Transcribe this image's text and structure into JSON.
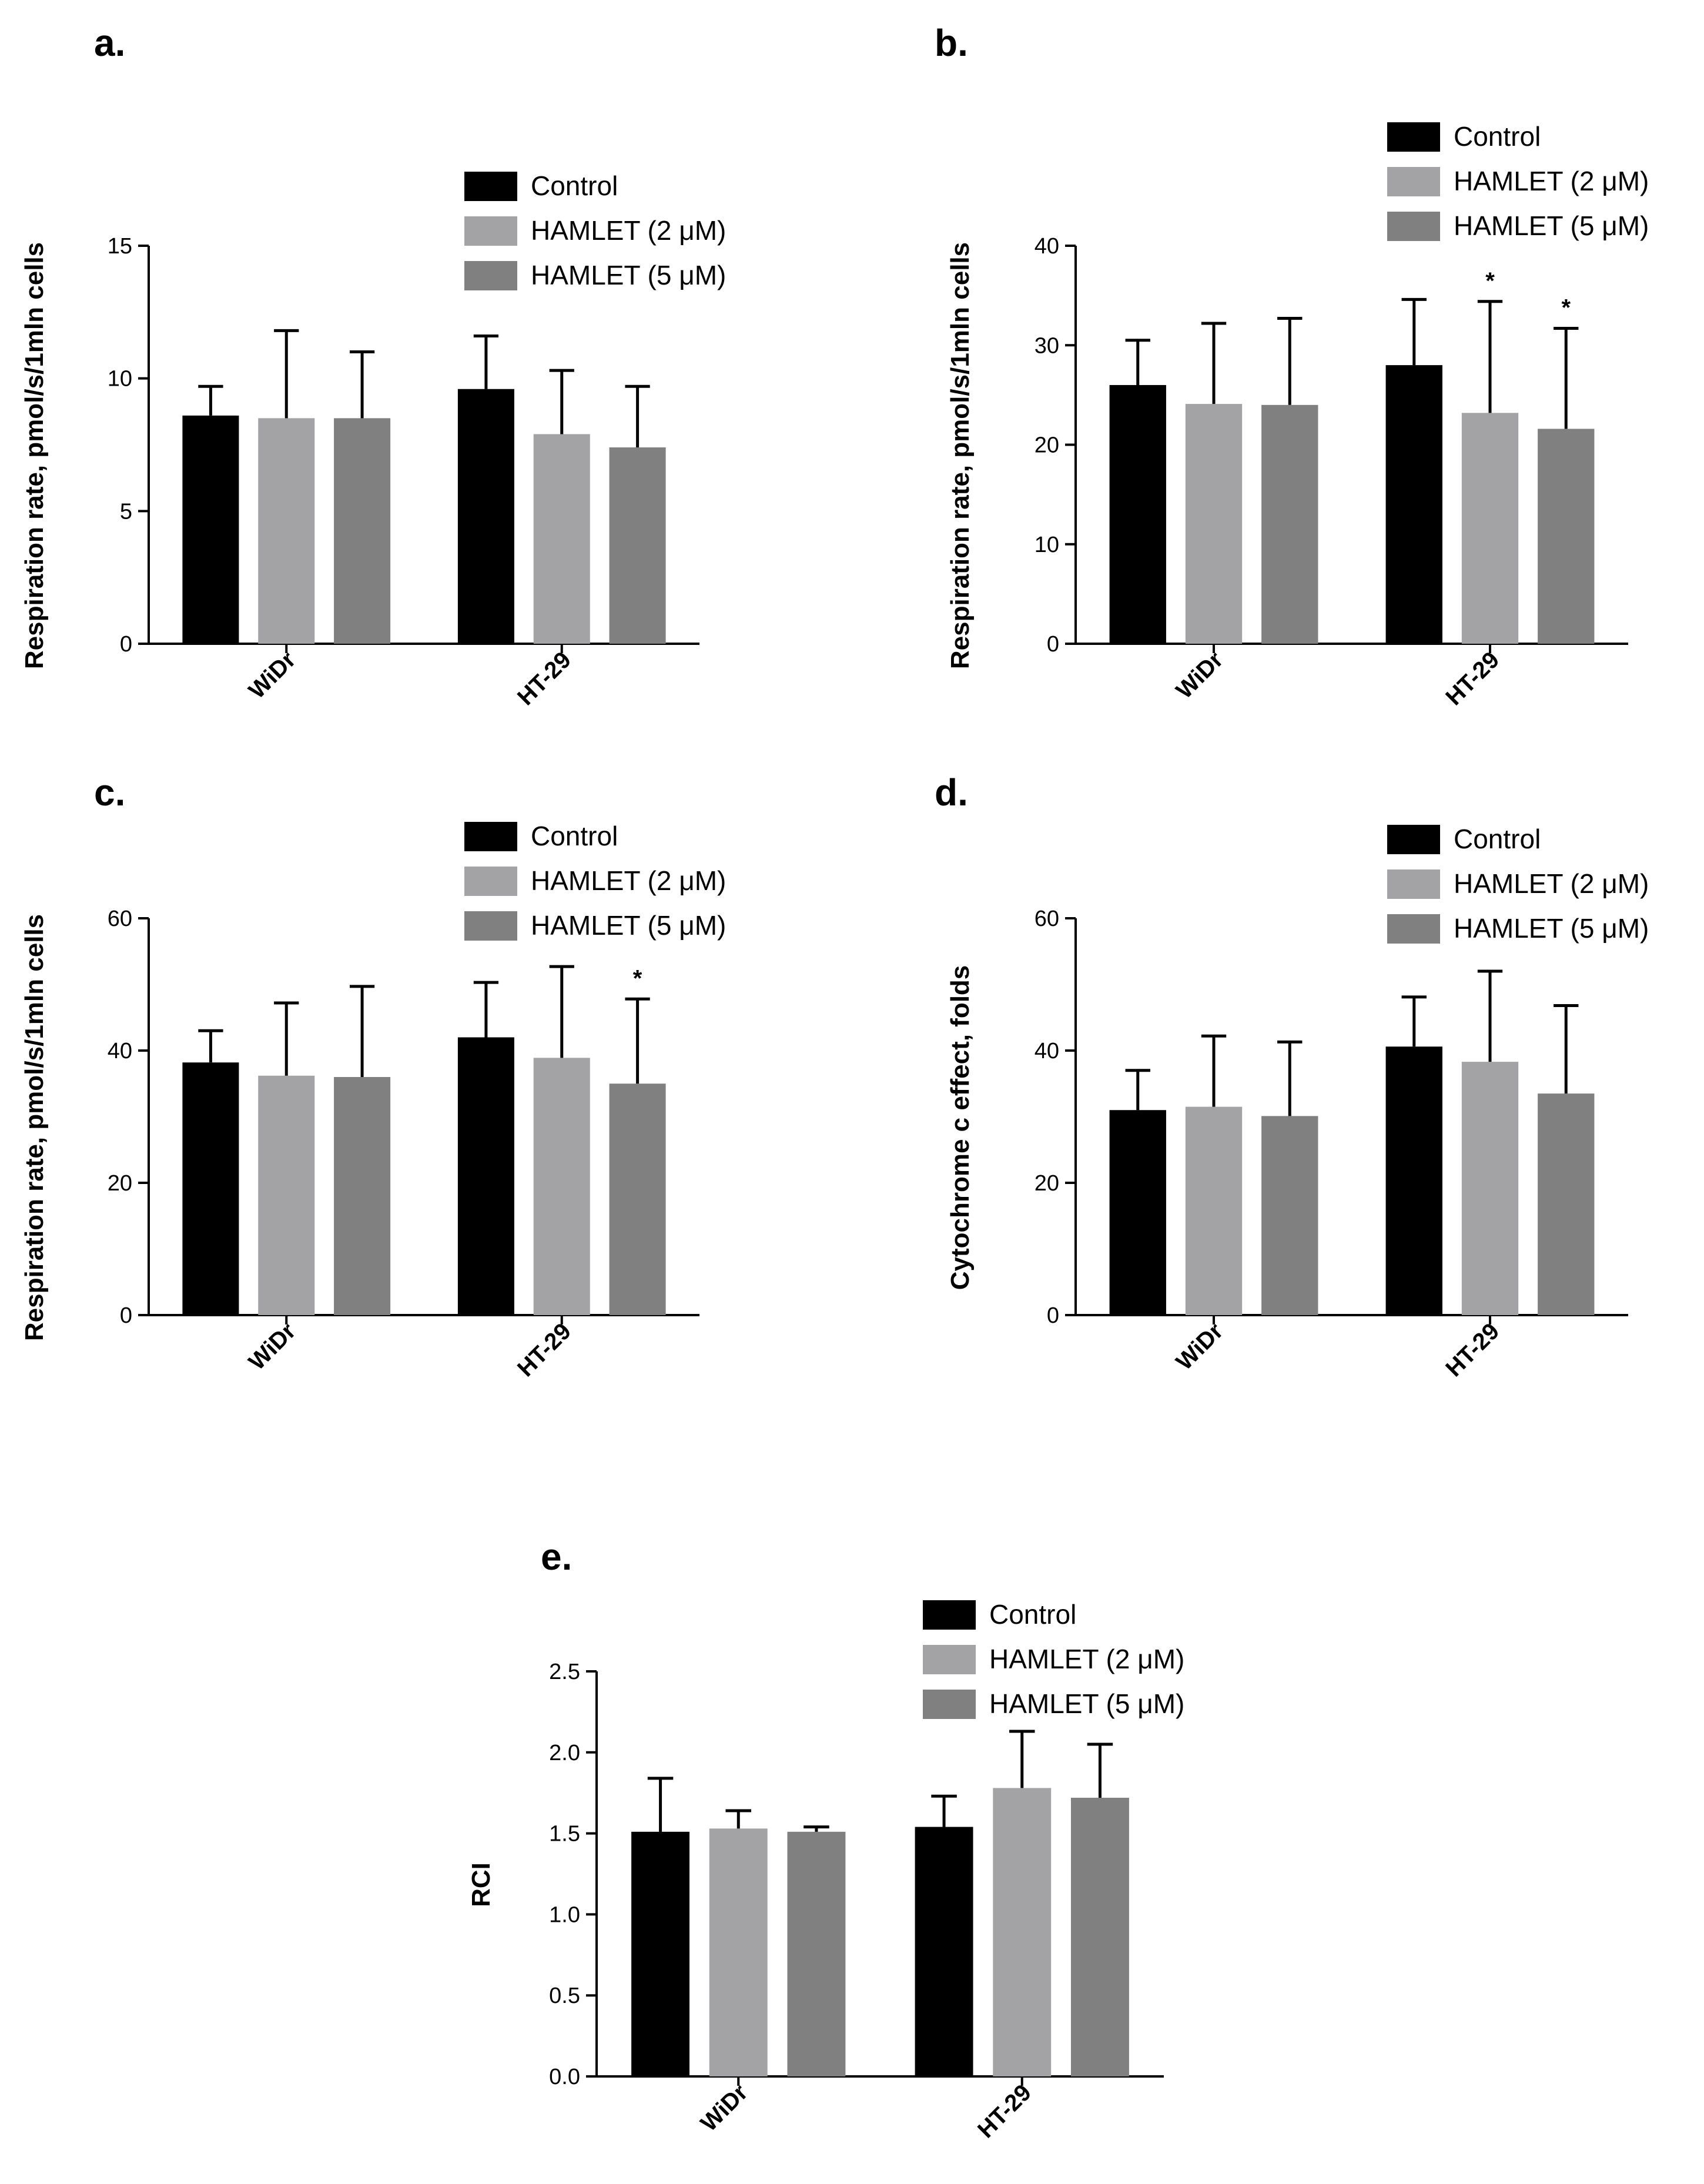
{
  "colors": {
    "control": "#000000",
    "hamlet2": "#a3a3a6",
    "hamlet5": "#808080"
  },
  "legend": [
    "Control",
    "HAMLET (2 μM)",
    "HAMLET (5 μM)"
  ],
  "chart_data": [
    {
      "panel": "a.",
      "type": "bar",
      "ylabel": "Respiration rate, pmol/s/1mln cells",
      "categories": [
        "WiDr",
        "HT-29"
      ],
      "ylim": [
        0,
        15
      ],
      "yticks": [
        "0",
        "5",
        "10",
        "15"
      ],
      "series": [
        {
          "name": "Control",
          "values": [
            8.6,
            9.6
          ],
          "errors": [
            1.1,
            2.0
          ],
          "sig": [
            "",
            ""
          ]
        },
        {
          "name": "HAMLET (2 μM)",
          "values": [
            8.5,
            7.9
          ],
          "errors": [
            3.3,
            2.4
          ],
          "sig": [
            "",
            ""
          ]
        },
        {
          "name": "HAMLET (5 μM)",
          "values": [
            8.5,
            7.4
          ],
          "errors": [
            2.5,
            2.3
          ],
          "sig": [
            "",
            ""
          ]
        }
      ]
    },
    {
      "panel": "b.",
      "type": "bar",
      "ylabel": "Respiration rate, pmol/s/1mln cells",
      "categories": [
        "WiDr",
        "HT-29"
      ],
      "ylim": [
        0,
        40
      ],
      "yticks": [
        "0",
        "10",
        "20",
        "30",
        "40"
      ],
      "series": [
        {
          "name": "Control",
          "values": [
            26,
            28
          ],
          "errors": [
            4.5,
            6.6
          ],
          "sig": [
            "",
            ""
          ]
        },
        {
          "name": "HAMLET (2 μM)",
          "values": [
            24.1,
            23.2
          ],
          "errors": [
            8.1,
            11.2
          ],
          "sig": [
            "",
            "*"
          ]
        },
        {
          "name": "HAMLET (5 μM)",
          "values": [
            24,
            21.6
          ],
          "errors": [
            8.7,
            10.1
          ],
          "sig": [
            "",
            "*"
          ]
        }
      ]
    },
    {
      "panel": "c.",
      "type": "bar",
      "ylabel": "Respiration rate, pmol/s/1mln cells",
      "categories": [
        "WiDr",
        "HT-29"
      ],
      "ylim": [
        0,
        60
      ],
      "yticks": [
        "0",
        "20",
        "40",
        "60"
      ],
      "series": [
        {
          "name": "Control",
          "values": [
            38.2,
            42
          ],
          "errors": [
            4.8,
            8.3
          ],
          "sig": [
            "",
            ""
          ]
        },
        {
          "name": "HAMLET (2 μM)",
          "values": [
            36.2,
            38.9
          ],
          "errors": [
            11,
            13.8
          ],
          "sig": [
            "",
            ""
          ]
        },
        {
          "name": "HAMLET (5 μM)",
          "values": [
            36,
            35
          ],
          "errors": [
            13.7,
            12.8
          ],
          "sig": [
            "",
            "*"
          ]
        }
      ]
    },
    {
      "panel": "d.",
      "type": "bar",
      "ylabel": "Cytochrome c effect, folds",
      "categories": [
        "WiDr",
        "HT-29"
      ],
      "ylim": [
        0,
        60
      ],
      "yticks": [
        "0",
        "20",
        "40",
        "60"
      ],
      "series": [
        {
          "name": "Control",
          "values": [
            31,
            40.6
          ],
          "errors": [
            6,
            7.5
          ],
          "sig": [
            "",
            ""
          ]
        },
        {
          "name": "HAMLET (2 μM)",
          "values": [
            31.5,
            38.3
          ],
          "errors": [
            10.7,
            13.7
          ],
          "sig": [
            "",
            ""
          ]
        },
        {
          "name": "HAMLET (5 μM)",
          "values": [
            30.1,
            33.5
          ],
          "errors": [
            11.2,
            13.3
          ],
          "sig": [
            "",
            ""
          ]
        }
      ]
    },
    {
      "panel": "e.",
      "type": "bar",
      "ylabel": "RCI",
      "categories": [
        "WiDr",
        "HT-29"
      ],
      "ylim": [
        0,
        2.5
      ],
      "yticks": [
        "0.0",
        "0.5",
        "1.0",
        "1.5",
        "2.0",
        "2.5"
      ],
      "series": [
        {
          "name": "Control",
          "values": [
            1.51,
            1.54
          ],
          "errors": [
            0.33,
            0.19
          ],
          "sig": [
            "",
            ""
          ]
        },
        {
          "name": "HAMLET (2 μM)",
          "values": [
            1.53,
            1.78
          ],
          "errors": [
            0.11,
            0.35
          ],
          "sig": [
            "",
            ""
          ]
        },
        {
          "name": "HAMLET (5 μM)",
          "values": [
            1.51,
            1.72
          ],
          "errors": [
            0.03,
            0.33
          ],
          "sig": [
            "",
            ""
          ]
        }
      ]
    }
  ]
}
